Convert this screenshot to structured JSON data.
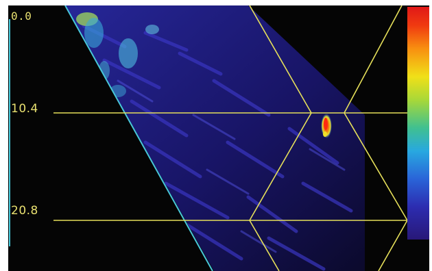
{
  "depth_scale": {
    "labels": [
      "0.0",
      "10.4",
      "20.8"
    ]
  },
  "colors": {
    "background": "#050505",
    "overlay_lines": "#e6e05a",
    "probe_edge": "#48c8d8",
    "depth_text": "#e8e070"
  },
  "icons": {
    "colorbar": "color-scale-bar"
  }
}
